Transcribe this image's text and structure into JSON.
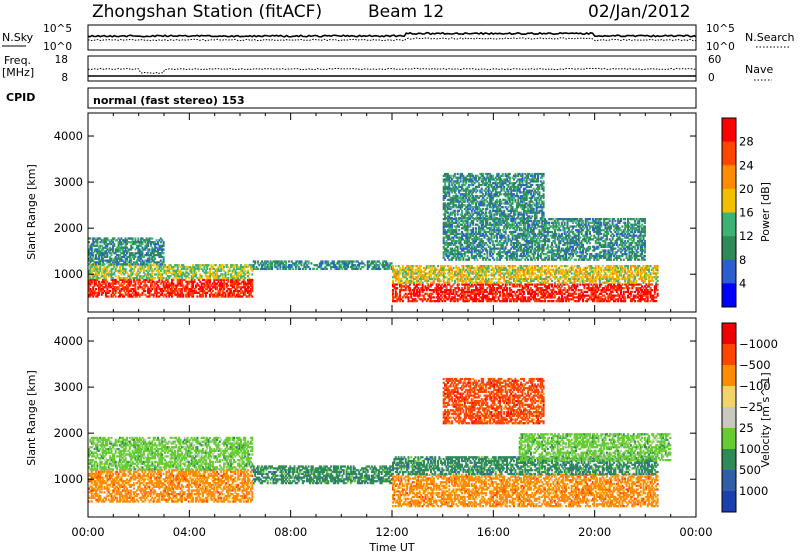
{
  "header": {
    "station": "Zhongshan Station (fitACF)",
    "beam": "Beam 12",
    "date": "02/Jan/2012"
  },
  "panels": {
    "nsky_label": "N.Sky",
    "nsearch_label": "N.Search",
    "nsky_ticks": [
      "10^5",
      "10^0"
    ],
    "freq_label": "Freq.",
    "freq_unit": "[MHz]",
    "freq_ticks": [
      "18",
      "8"
    ],
    "nave_label": "Nave",
    "nave_ticks": [
      "60",
      "0"
    ],
    "cpid_label": "CPID",
    "cpid_text": "normal (fast stereo) 153"
  },
  "chart_data": [
    {
      "type": "heatmap",
      "title": "",
      "xlabel": "Time UT",
      "ylabel": "Slant Range [km]",
      "xlim": [
        0,
        24
      ],
      "ylim": [
        180,
        4500
      ],
      "x_ticks": [
        "00:00",
        "04:00",
        "08:00",
        "12:00",
        "16:00",
        "20:00",
        "00:00"
      ],
      "y_ticks": [
        1000,
        2000,
        3000,
        4000
      ],
      "colorbar": {
        "label": "Power [dB]",
        "ticks": [
          4,
          8,
          12,
          16,
          20,
          24,
          28
        ],
        "range": [
          0,
          32
        ],
        "colors": [
          "#0000ff",
          "#2b5fd0",
          "#2e8b57",
          "#3cb371",
          "#f0c000",
          "#ff8c00",
          "#ff4500",
          "#ff0000"
        ]
      },
      "bands": [
        {
          "t": [
            0,
            6.5
          ],
          "r": [
            500,
            900
          ],
          "level": 26
        },
        {
          "t": [
            0,
            6.5
          ],
          "r": [
            900,
            1200
          ],
          "level": 14
        },
        {
          "t": [
            0,
            3.0
          ],
          "r": [
            1200,
            1800
          ],
          "level": 8
        },
        {
          "t": [
            6.5,
            12.0
          ],
          "r": [
            1100,
            1300
          ],
          "level": 8
        },
        {
          "t": [
            12.0,
            22.5
          ],
          "r": [
            400,
            800
          ],
          "level": 27
        },
        {
          "t": [
            12.0,
            22.5
          ],
          "r": [
            800,
            1200
          ],
          "level": 16
        },
        {
          "t": [
            14.0,
            22.0
          ],
          "r": [
            1300,
            2200
          ],
          "level": 8
        },
        {
          "t": [
            14.0,
            18.0
          ],
          "r": [
            2200,
            3200
          ],
          "level": 8
        }
      ]
    },
    {
      "type": "heatmap",
      "title": "",
      "xlabel": "Time UT",
      "ylabel": "Slant Range [km]",
      "xlim": [
        0,
        24
      ],
      "ylim": [
        180,
        4500
      ],
      "x_ticks": [
        "00:00",
        "04:00",
        "08:00",
        "12:00",
        "16:00",
        "20:00",
        "00:00"
      ],
      "y_ticks": [
        1000,
        2000,
        3000,
        4000
      ],
      "colorbar": {
        "label": "Velocity [m s^-1]",
        "ticks": [
          "1000",
          "500",
          "100",
          "25",
          "−25",
          "−100",
          "−500",
          "−1000"
        ],
        "colors": [
          "#1c3fb0",
          "#2e5fa8",
          "#2e8b57",
          "#66cc33",
          "#c8c8c0",
          "#f2d36a",
          "#ff8c00",
          "#ff4500",
          "#ee0000"
        ]
      },
      "bands": [
        {
          "t": [
            0,
            6.5
          ],
          "r": [
            500,
            1200
          ],
          "level": "-100"
        },
        {
          "t": [
            0,
            6.5
          ],
          "r": [
            1200,
            1900
          ],
          "level": "25"
        },
        {
          "t": [
            6.5,
            12.0
          ],
          "r": [
            900,
            1300
          ],
          "level": "100"
        },
        {
          "t": [
            12.0,
            22.5
          ],
          "r": [
            400,
            1100
          ],
          "level": "-100"
        },
        {
          "t": [
            12.0,
            22.5
          ],
          "r": [
            1100,
            1500
          ],
          "level": "100"
        },
        {
          "t": [
            17.0,
            23.0
          ],
          "r": [
            1400,
            2000
          ],
          "level": "25"
        },
        {
          "t": [
            14.0,
            18.0
          ],
          "r": [
            2200,
            3200
          ],
          "level": "-500"
        }
      ]
    }
  ]
}
